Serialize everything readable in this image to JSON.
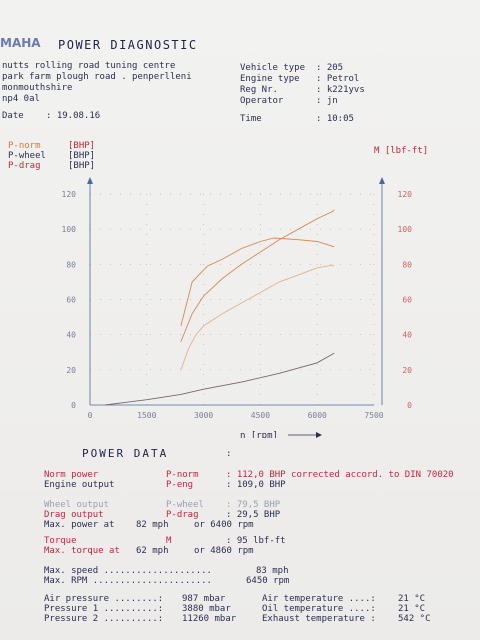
{
  "header": {
    "logo_text": "MAHA",
    "title": "POWER DIAGNOSTIC",
    "address_line1": "nutts rolling road tuning centre",
    "address_line2": "park farm  plough road . penperlleni",
    "address_line3": "monmouthshire",
    "address_line4": "np4 0al",
    "date_label": "Date",
    "date_value": ": 19.08.16",
    "vehicle_type_label": "Vehicle type",
    "vehicle_type_value": ": 205",
    "engine_type_label": "Engine type",
    "engine_type_value": ": Petrol",
    "reg_label": "Reg Nr.",
    "reg_value": ": k221yvs",
    "operator_label": "Operator",
    "operator_value": ": jn",
    "time_label": "Time",
    "time_value": ": 10:05"
  },
  "legend": {
    "p_norm": "P-norm",
    "p_norm_unit": "[BHP]",
    "p_wheel": "P-wheel",
    "p_wheel_unit": "[BHP]",
    "p_drag": "P-drag",
    "p_drag_unit": "[BHP]",
    "torque": "M [lbf-ft]"
  },
  "colors": {
    "norm": "#d48a55",
    "wheel": "#e0b28a",
    "drag": "#7a6470",
    "text_red": "#c0283c",
    "text_navy": "#2a2f50"
  },
  "chart_data": {
    "type": "line",
    "xlabel": "n [rpm]",
    "x_ticks": [
      "0",
      "1500",
      "3000",
      "4500",
      "6000",
      "7500"
    ],
    "y_left_ticks": [
      "0",
      "20",
      "40",
      "60",
      "80",
      "100",
      "120"
    ],
    "y_right_ticks": [
      "0",
      "20",
      "40",
      "60",
      "80",
      "100",
      "120"
    ],
    "xlim": [
      0,
      7500
    ],
    "ylim": [
      0,
      120
    ],
    "grid": true,
    "series": [
      {
        "name": "P-norm",
        "axis": "left",
        "color": "#d48a55",
        "x": [
          2400,
          2700,
          3000,
          3500,
          4000,
          4500,
          5000,
          5500,
          6000,
          6400,
          6450
        ],
        "y": [
          36,
          52,
          62,
          72,
          80,
          87,
          94,
          100,
          106,
          110,
          111
        ]
      },
      {
        "name": "P-wheel",
        "axis": "left",
        "color": "#e0b28a",
        "x": [
          2400,
          2600,
          2800,
          3000,
          3500,
          4000,
          4500,
          5000,
          5500,
          6000,
          6400,
          6450
        ],
        "y": [
          20,
          32,
          40,
          45,
          52,
          58,
          64,
          70,
          74,
          78,
          79.5,
          79
        ]
      },
      {
        "name": "P-drag",
        "axis": "left",
        "color": "#7a6470",
        "x": [
          400,
          1500,
          2400,
          3000,
          4000,
          5000,
          6000,
          6450
        ],
        "y": [
          0,
          3,
          6,
          9,
          13,
          18,
          24,
          29.5
        ]
      },
      {
        "name": "M",
        "axis": "right",
        "color": "#d48a55",
        "x": [
          2400,
          2700,
          3100,
          3500,
          4000,
          4500,
          4860,
          5500,
          6000,
          6450
        ],
        "y": [
          45,
          70,
          79,
          83,
          89,
          93,
          95,
          94,
          93,
          90
        ]
      }
    ]
  },
  "power_data": {
    "heading": "POWER DATA",
    "colon": ":",
    "rows": [
      {
        "label": "Norm power",
        "sym": "P-norm",
        "value": ": 112,0 BHP corrected accord. to DIN 70020",
        "color": "red"
      },
      {
        "label": "Engine output",
        "sym": "P-eng",
        "value": ": 109,0 BHP",
        "color": "navy"
      },
      {
        "label": "Wheel output",
        "sym": "P-wheel",
        "value": ": 79,5 BHP",
        "color": "grey"
      },
      {
        "label": "Drag output",
        "sym": "P-drag",
        "value": ": 29,5 BHP",
        "color": "red"
      },
      {
        "label": "Max. power at",
        "sym": "82 mph",
        "value": "or    6400 rpm",
        "color": "navy"
      }
    ],
    "torque": {
      "label": "Torque",
      "sym": "M",
      "value": ": 95 lbf-ft"
    },
    "max_torque": {
      "label": "Max. torque at",
      "sym": "62 mph",
      "value": "or    4860 rpm"
    },
    "max_speed": {
      "label": "Max. speed ....................",
      "value": "83 mph"
    },
    "max_rpm": {
      "label": "Max. RPM ......................",
      "value": "6450 rpm"
    },
    "ambient": [
      {
        "label": "Air pressure ........:",
        "value": "987 mbar",
        "label2": "Air temperature ....:",
        "value2": "21  °C"
      },
      {
        "label": "Pressure 1 ..........:",
        "value": "3880 mbar",
        "label2": "Oil temperature ....:",
        "value2": "21  °C"
      },
      {
        "label": "Pressure 2 ..........:",
        "value": "11260 mbar",
        "label2": "Exhaust temperature :",
        "value2": "542 °C"
      }
    ]
  }
}
